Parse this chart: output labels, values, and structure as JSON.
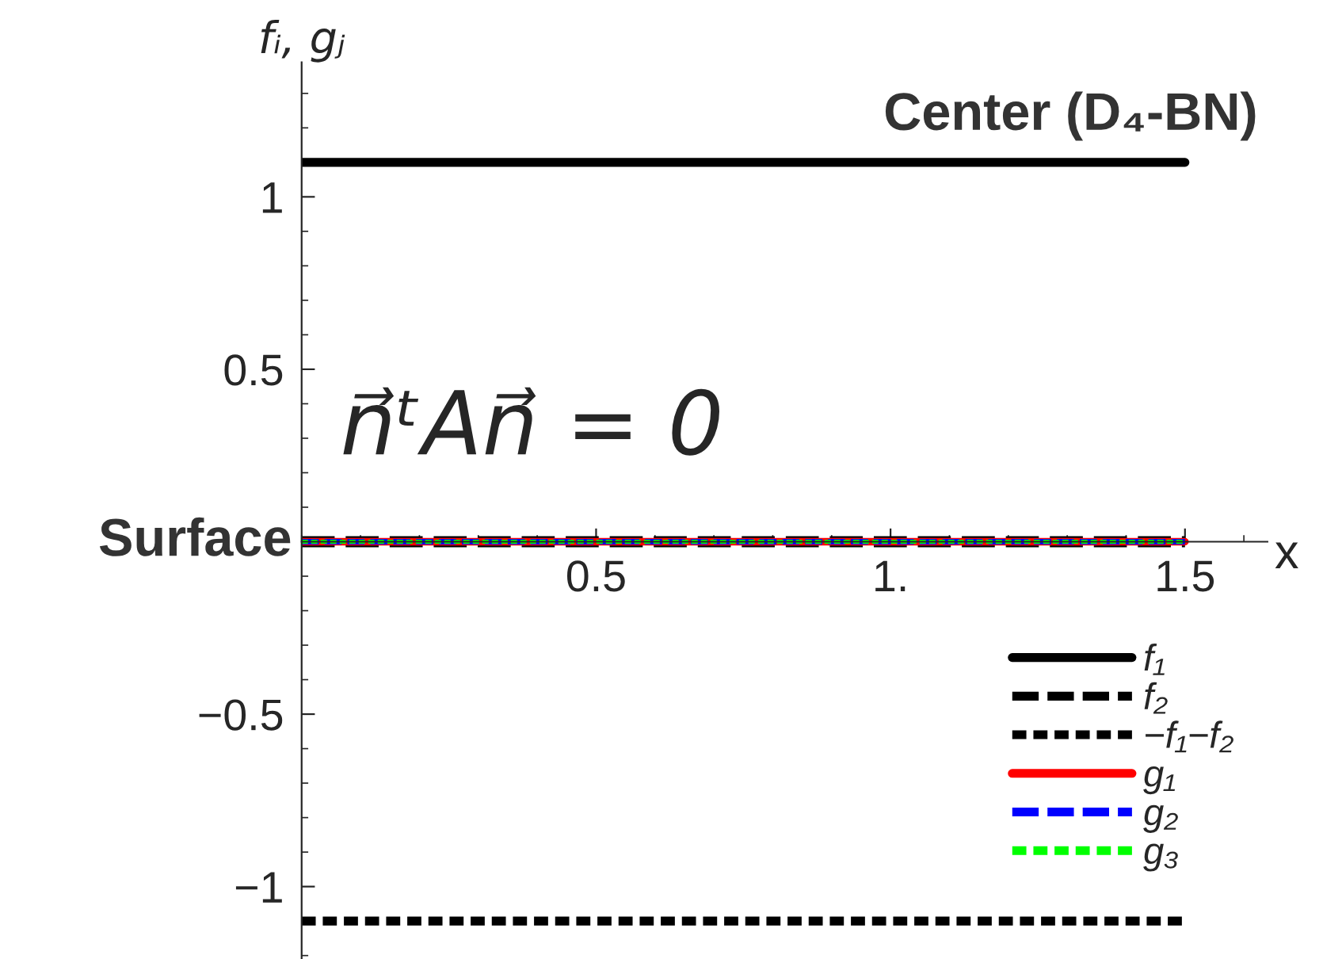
{
  "chart_data": {
    "type": "line",
    "ylabel": "fᵢ, gⱼ",
    "xlabel": "x",
    "annotations": [
      "Center (D₄-BN)",
      "Surface",
      "n⃗ᵗAn⃗ = 0"
    ],
    "x": [
      0,
      1.5
    ],
    "series": [
      {
        "name": "f₁",
        "color": "#000000",
        "values": [
          1.1,
          1.1
        ],
        "line_style": "solid"
      },
      {
        "name": "f₂",
        "color": "#000000",
        "values": [
          0,
          0
        ],
        "line_style": "dashed"
      },
      {
        "name": "−f₁−f₂",
        "color": "#000000",
        "values": [
          -1.1,
          -1.1
        ],
        "line_style": "dotted"
      },
      {
        "name": "g₁",
        "color": "#ff0000",
        "values": [
          0,
          0
        ],
        "line_style": "solid"
      },
      {
        "name": "g₂",
        "color": "#0000ff",
        "values": [
          0,
          0
        ],
        "line_style": "dashed"
      },
      {
        "name": "g₃",
        "color": "#00ff00",
        "values": [
          0,
          0
        ],
        "line_style": "dotted"
      }
    ],
    "xlim": [
      0,
      1.64
    ],
    "ylim": [
      -1.21,
      1.39
    ],
    "xticks": [
      0.5,
      {
        "value": 1,
        "label": "1."
      },
      1.5
    ],
    "yticks": [
      {
        "value": -1,
        "label": "−1"
      },
      {
        "value": -0.5,
        "label": "−0.5"
      },
      0.5,
      1
    ],
    "grid": false,
    "legend": "bottom right",
    "marker": "none"
  }
}
